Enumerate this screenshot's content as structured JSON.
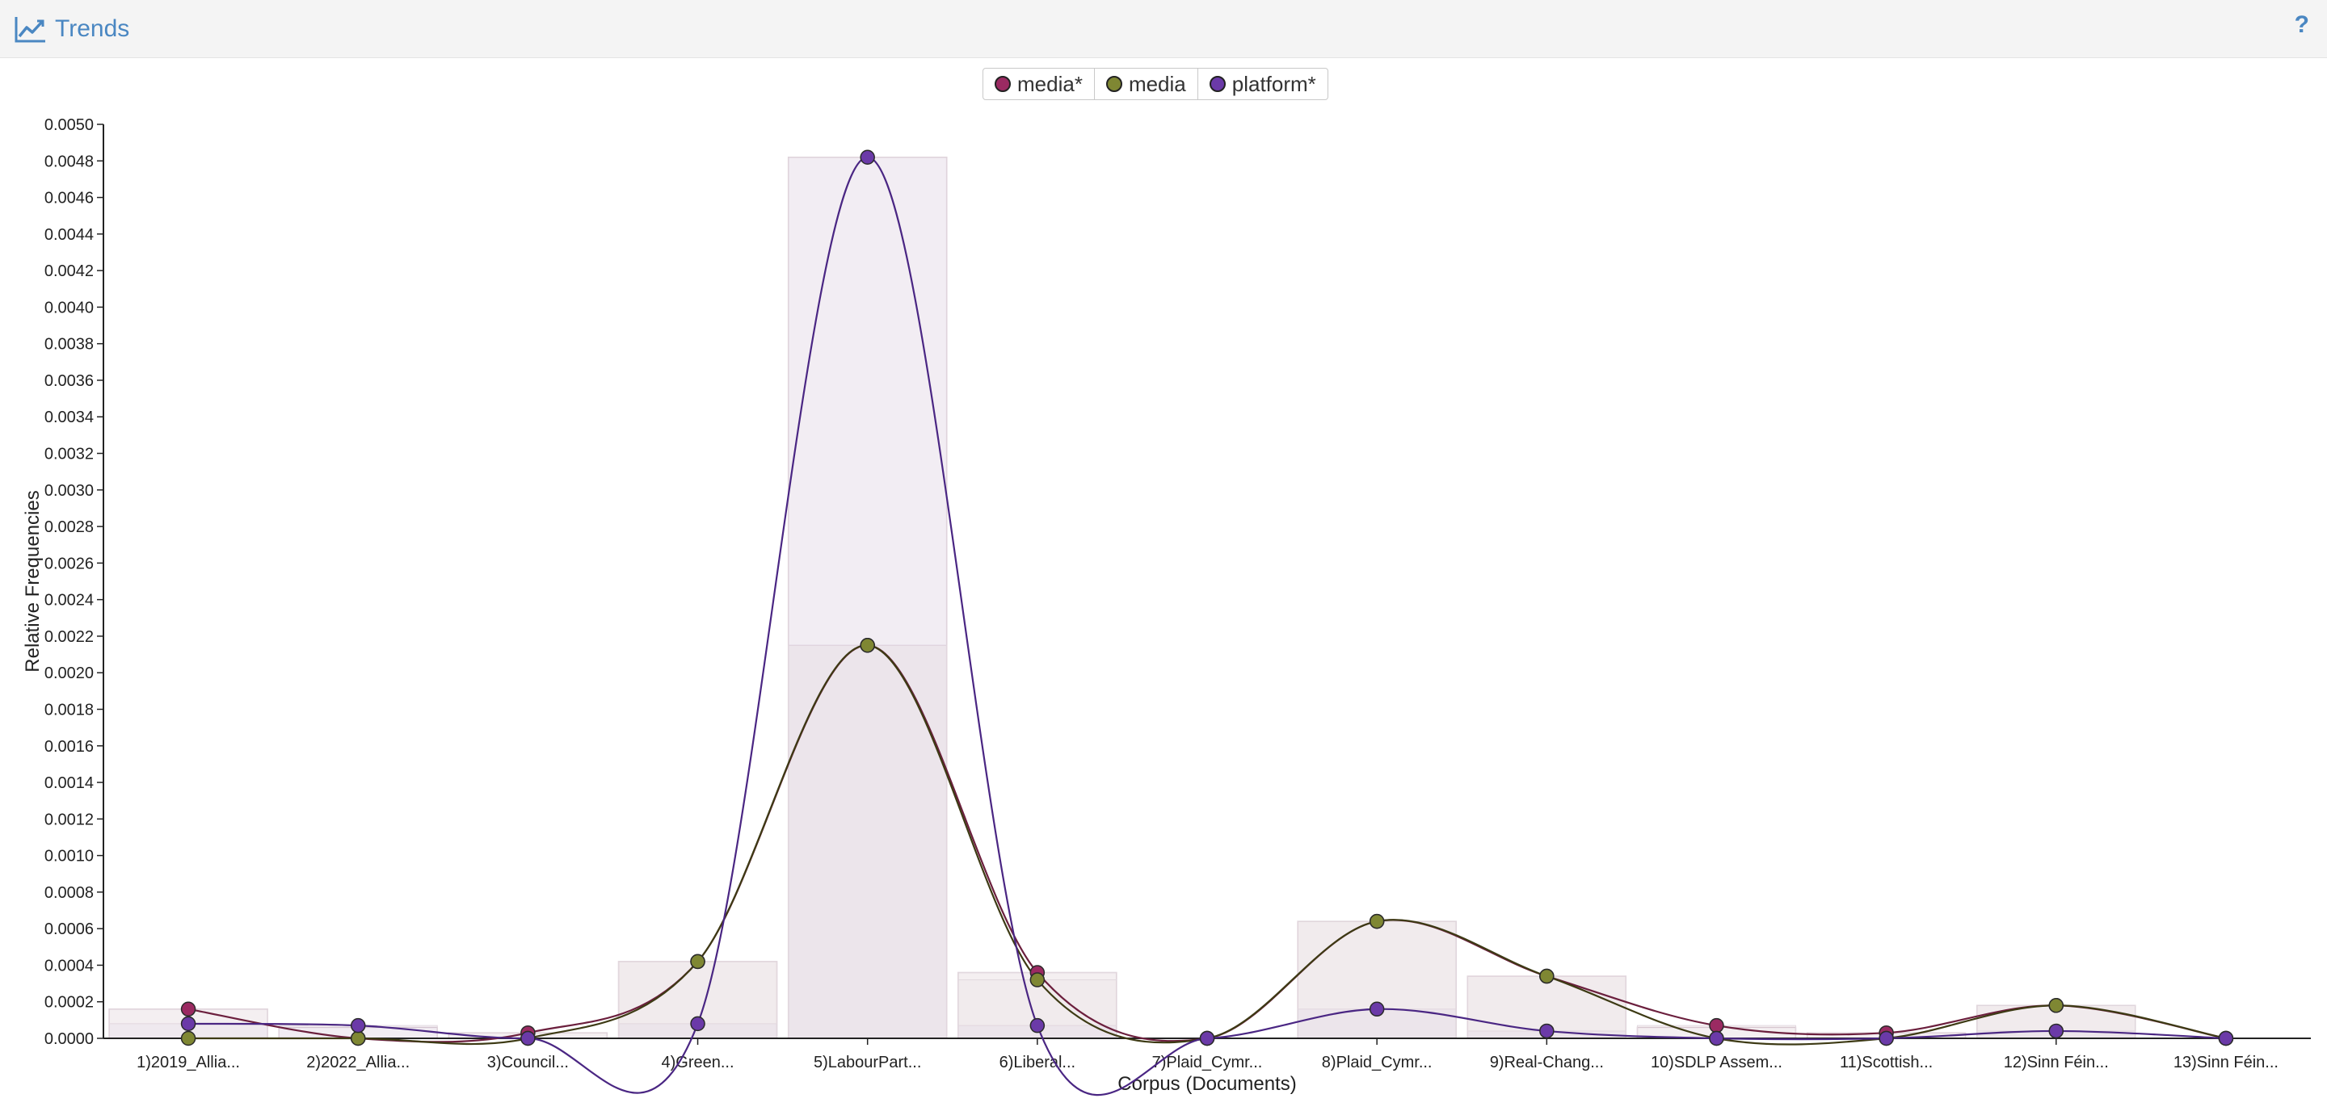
{
  "header": {
    "title": "Trends",
    "title_icon": "line-chart-icon",
    "help_label": "?",
    "help_icon": "question-icon"
  },
  "legend": [
    {
      "label": "media*",
      "color": "#9b2a62"
    },
    {
      "label": "media",
      "color": "#7f8733"
    },
    {
      "label": "platform*",
      "color": "#6b3aa8"
    }
  ],
  "chart_data": {
    "type": "line",
    "xlabel": "Corpus (Documents)",
    "ylabel": "Relative Frequencies",
    "ylim": [
      0,
      0.005
    ],
    "yticks": [
      "0.0000",
      "0.0002",
      "0.0004",
      "0.0006",
      "0.0008",
      "0.0010",
      "0.0012",
      "0.0014",
      "0.0016",
      "0.0018",
      "0.0020",
      "0.0022",
      "0.0024",
      "0.0026",
      "0.0028",
      "0.0030",
      "0.0032",
      "0.0034",
      "0.0036",
      "0.0038",
      "0.0040",
      "0.0042",
      "0.0044",
      "0.0046",
      "0.0048",
      "0.0050"
    ],
    "categories": [
      "1)2019_Allia...",
      "2)2022_Allia...",
      "3)Council...",
      "4)Green...",
      "5)LabourPart...",
      "6)Liberal...",
      "7)Plaid_Cymr...",
      "8)Plaid_Cymr...",
      "9)Real-Chang...",
      "10)SDLP Assem...",
      "11)Scottish...",
      "12)Sinn Féin...",
      "13)Sinn Féin..."
    ],
    "bars_total": [
      0.00016,
      6e-05,
      3e-05,
      0.00042,
      0.00482,
      0.00036,
      0.0,
      0.00064,
      0.00034,
      6e-05,
      3e-05,
      0.00018,
      0.0
    ],
    "series": [
      {
        "name": "media*",
        "color": "#9b2a62",
        "values": [
          0.00016,
          0.0,
          3e-05,
          0.00042,
          0.00215,
          0.00036,
          0.0,
          0.00064,
          0.00034,
          7e-05,
          3e-05,
          0.00018,
          0.0
        ]
      },
      {
        "name": "media",
        "color": "#7f8733",
        "values": [
          0.0,
          0.0,
          0.0,
          0.00042,
          0.00215,
          0.00032,
          0.0,
          0.00064,
          0.00034,
          0.0,
          0.0,
          0.00018,
          0.0
        ]
      },
      {
        "name": "platform*",
        "color": "#6b3aa8",
        "values": [
          8e-05,
          7e-05,
          0.0,
          8e-05,
          0.00482,
          7e-05,
          0.0,
          0.00016,
          4e-05,
          0.0,
          0.0,
          4e-05,
          0.0
        ]
      }
    ],
    "grid": false,
    "legend_position": "top-center"
  }
}
